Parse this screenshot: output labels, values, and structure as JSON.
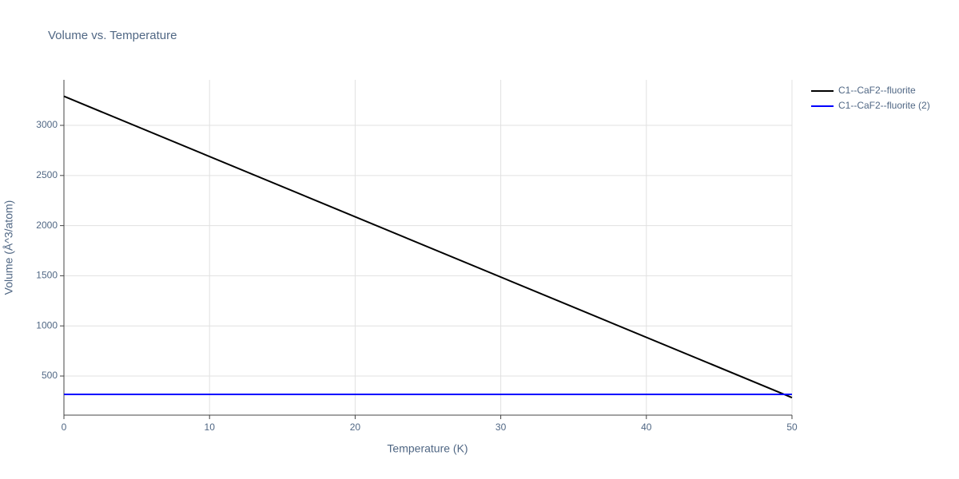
{
  "chart_data": {
    "type": "line",
    "title": "Volume vs. Temperature",
    "x_label": "Temperature (K)",
    "y_label": "Volume (Å^3/atom)",
    "x": [
      0,
      50
    ],
    "series": [
      {
        "name": "C1--CaF2--fluorite",
        "color": "#000000",
        "values": [
          3290,
          285
        ]
      },
      {
        "name": "C1--CaF2--fluorite (2)",
        "color": "#0000ff",
        "values": [
          317,
          317
        ]
      }
    ],
    "xlim": [
      0,
      50
    ],
    "xticks": [
      0,
      10,
      20,
      30,
      40,
      50
    ],
    "ylim": [
      110,
      3454
    ],
    "yticks": [
      500,
      1000,
      1500,
      2000,
      2500,
      3000
    ],
    "grid": true,
    "legend": "right"
  }
}
